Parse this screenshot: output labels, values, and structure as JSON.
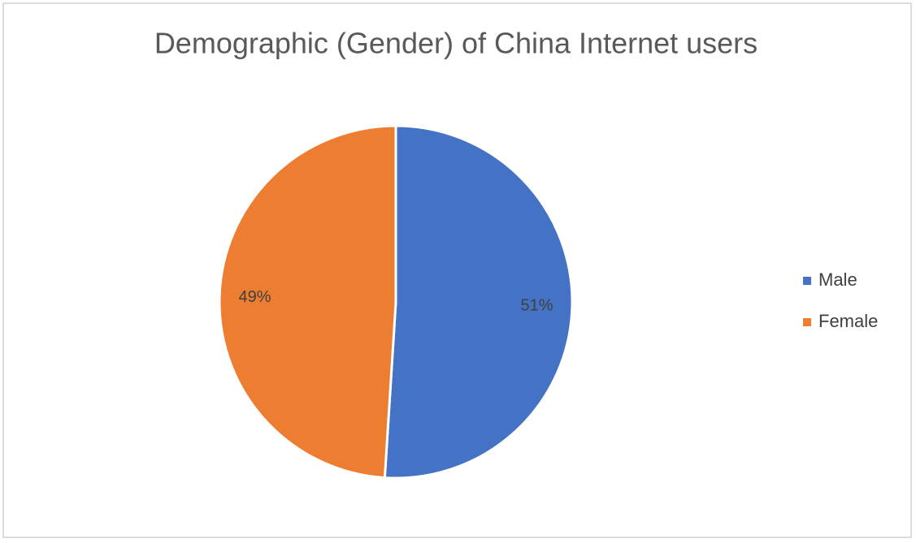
{
  "chart_data": {
    "type": "pie",
    "title": "Demographic (Gender) of China Internet users",
    "categories": [
      "Male",
      "Female"
    ],
    "values": [
      51,
      49
    ],
    "value_labels": [
      "51%",
      "49%"
    ],
    "colors": [
      "#4472c4",
      "#ed7d31"
    ],
    "legend": "right"
  }
}
